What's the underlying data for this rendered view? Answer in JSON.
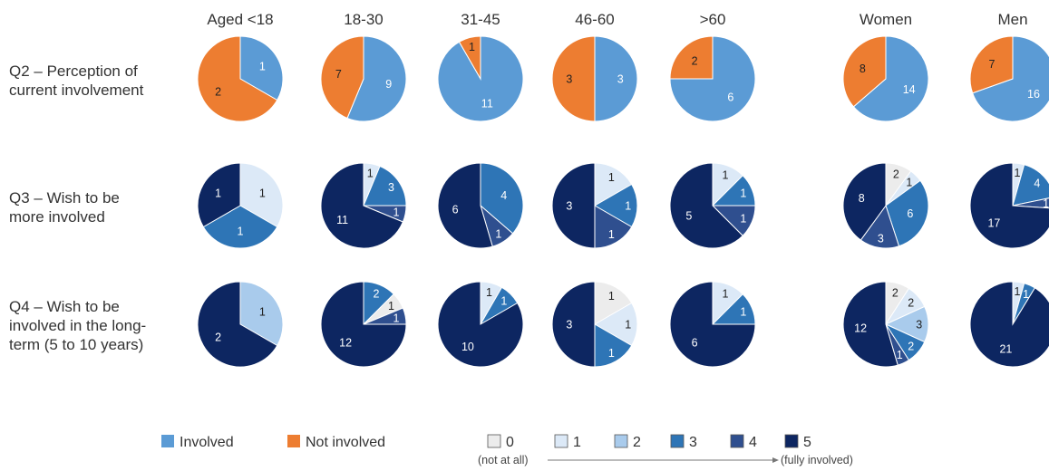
{
  "chart_data": {
    "type": "pie",
    "columns": [
      "Aged <18",
      "18-30",
      "31-45",
      "46-60",
      ">60",
      "Women",
      "Men"
    ],
    "rows": [
      {
        "label_lines": [
          "Q2 – Perception of",
          "current involvement"
        ],
        "scheme": "involvement"
      },
      {
        "label_lines": [
          "Q3 – Wish to be",
          "more involved"
        ],
        "scheme": "scale"
      },
      {
        "label_lines": [
          "Q4 – Wish to be",
          "involved in the long-",
          "term (5 to 10 years)"
        ],
        "scheme": "scale"
      }
    ],
    "pies": [
      [
        [
          {
            "category": "Involved",
            "value": 1
          },
          {
            "category": "Not involved",
            "value": 2
          }
        ],
        [
          {
            "category": "Involved",
            "value": 9
          },
          {
            "category": "Not involved",
            "value": 7
          }
        ],
        [
          {
            "category": "Involved",
            "value": 11
          },
          {
            "category": "Not involved",
            "value": 1
          }
        ],
        [
          {
            "category": "Involved",
            "value": 3
          },
          {
            "category": "Not involved",
            "value": 3
          }
        ],
        [
          {
            "category": "Involved",
            "value": 6
          },
          {
            "category": "Not involved",
            "value": 2
          }
        ],
        [
          {
            "category": "Involved",
            "value": 14
          },
          {
            "category": "Not involved",
            "value": 8
          }
        ],
        [
          {
            "category": "Involved",
            "value": 16
          },
          {
            "category": "Not involved",
            "value": 7
          }
        ]
      ],
      [
        [
          {
            "category": "1",
            "value": 1
          },
          {
            "category": "3",
            "value": 1
          },
          {
            "category": "5",
            "value": 1
          }
        ],
        [
          {
            "category": "1",
            "value": 1
          },
          {
            "category": "3",
            "value": 3
          },
          {
            "category": "4",
            "value": 1
          },
          {
            "category": "5",
            "value": 11
          }
        ],
        [
          {
            "category": "3",
            "value": 4
          },
          {
            "category": "4",
            "value": 1
          },
          {
            "category": "5",
            "value": 6
          }
        ],
        [
          {
            "category": "1",
            "value": 1
          },
          {
            "category": "3",
            "value": 1
          },
          {
            "category": "4",
            "value": 1
          },
          {
            "category": "5",
            "value": 3
          }
        ],
        [
          {
            "category": "1",
            "value": 1
          },
          {
            "category": "3",
            "value": 1
          },
          {
            "category": "4",
            "value": 1
          },
          {
            "category": "5",
            "value": 5
          }
        ],
        [
          {
            "category": "0",
            "value": 2
          },
          {
            "category": "1",
            "value": 1
          },
          {
            "category": "3",
            "value": 6
          },
          {
            "category": "4",
            "value": 3
          },
          {
            "category": "5",
            "value": 8
          }
        ],
        [
          {
            "category": "1",
            "value": 1
          },
          {
            "category": "3",
            "value": 4
          },
          {
            "category": "4",
            "value": 1
          },
          {
            "category": "5",
            "value": 17
          }
        ]
      ],
      [
        [
          {
            "category": "2",
            "value": 1
          },
          {
            "category": "5",
            "value": 2
          }
        ],
        [
          {
            "category": "3",
            "value": 2
          },
          {
            "category": "0",
            "value": 1
          },
          {
            "category": "4",
            "value": 1
          },
          {
            "category": "5",
            "value": 12
          }
        ],
        [
          {
            "category": "1",
            "value": 1
          },
          {
            "category": "3",
            "value": 1
          },
          {
            "category": "5",
            "value": 10
          }
        ],
        [
          {
            "category": "0",
            "value": 1
          },
          {
            "category": "1",
            "value": 1
          },
          {
            "category": "3",
            "value": 1
          },
          {
            "category": "5",
            "value": 3
          }
        ],
        [
          {
            "category": "1",
            "value": 1
          },
          {
            "category": "3",
            "value": 1
          },
          {
            "category": "5",
            "value": 6
          }
        ],
        [
          {
            "category": "0",
            "value": 2
          },
          {
            "category": "1",
            "value": 2
          },
          {
            "category": "2",
            "value": 3
          },
          {
            "category": "3",
            "value": 2
          },
          {
            "category": "4",
            "value": 1
          },
          {
            "category": "5",
            "value": 12
          }
        ],
        [
          {
            "category": "1",
            "value": 1
          },
          {
            "category": "3",
            "value": 1
          },
          {
            "category": "5",
            "value": 21
          }
        ]
      ]
    ],
    "colors": {
      "Involved": "#5b9bd5",
      "Not involved": "#ed7d31",
      "0": "#ececec",
      "1": "#dce9f7",
      "2": "#a9cbec",
      "3": "#2e75b6",
      "4": "#2f4f8f",
      "5": "#0d2661"
    },
    "label_dark_categories": [
      "0",
      "1",
      "2",
      "Not involved"
    ],
    "legend_involvement": [
      {
        "category": "Involved",
        "label": "Involved"
      },
      {
        "category": "Not involved",
        "label": "Not involved"
      }
    ],
    "legend_scale": [
      {
        "category": "0",
        "label": "0"
      },
      {
        "category": "1",
        "label": "1"
      },
      {
        "category": "2",
        "label": "2"
      },
      {
        "category": "3",
        "label": "3"
      },
      {
        "category": "4",
        "label": "4"
      },
      {
        "category": "5",
        "label": "5"
      }
    ],
    "scale_low_label": "(not at all)",
    "scale_high_label": "(fully involved)"
  }
}
